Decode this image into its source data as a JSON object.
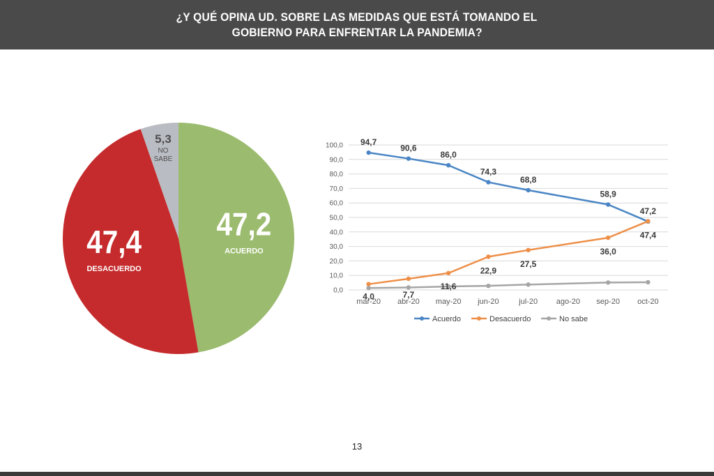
{
  "header": {
    "title_line1": "¿Y QUÉ OPINA UD. SOBRE LAS MEDIDAS QUE ESTÁ TOMANDO EL",
    "title_line2": "GOBIERNO PARA ENFRENTAR LA PANDEMIA?"
  },
  "page_number": "13",
  "colors": {
    "header_bg": "#4a4a4a",
    "acuerdo_pie": "#9bbb6e",
    "desacuerdo_pie": "#c52b2c",
    "no_sabe_pie": "#b9bcc2",
    "acuerdo_line": "#4a86c5",
    "desacuerdo_line": "#ee8f48",
    "no_sabe_line": "#a5a5a5"
  },
  "chart_data": [
    {
      "type": "pie",
      "slices": [
        {
          "key": "acuerdo",
          "value": 47.2,
          "value_label": "47,2",
          "label": "ACUERDO"
        },
        {
          "key": "desacuerdo",
          "value": 47.4,
          "value_label": "47,4",
          "label": "DESACUERDO"
        },
        {
          "key": "no_sabe",
          "value": 5.3,
          "value_label": "5,3",
          "label_lines": [
            "NO",
            "SABE"
          ]
        }
      ]
    },
    {
      "type": "line",
      "categories": [
        "mar-20",
        "abr-20",
        "may-20",
        "jun-20",
        "jul-20",
        "ago-20",
        "sep-20",
        "oct-20"
      ],
      "ylim": [
        0,
        100
      ],
      "yticks": [
        "0,0",
        "10,0",
        "20,0",
        "30,0",
        "40,0",
        "50,0",
        "60,0",
        "70,0",
        "80,0",
        "90,0",
        "100,0"
      ],
      "grid": true,
      "legend": "bottom",
      "series": [
        {
          "name": "Acuerdo",
          "values": [
            94.7,
            90.6,
            86.0,
            74.3,
            68.8,
            null,
            58.9,
            47.2
          ],
          "labels": [
            "94,7",
            "90,6",
            "86,0",
            "74,3",
            "68,8",
            null,
            "58,9",
            "47,2"
          ]
        },
        {
          "name": "Desacuerdo",
          "values": [
            4.0,
            7.7,
            11.6,
            22.9,
            27.5,
            null,
            36.0,
            47.4
          ],
          "labels": [
            "4,0",
            "7,7",
            "11,6",
            "22,9",
            "27,5",
            null,
            "36,0",
            "47,4"
          ]
        },
        {
          "name": "No sabe",
          "values": [
            1.3,
            1.7,
            2.4,
            2.8,
            3.7,
            null,
            5.1,
            5.3
          ],
          "labels": []
        }
      ]
    }
  ]
}
